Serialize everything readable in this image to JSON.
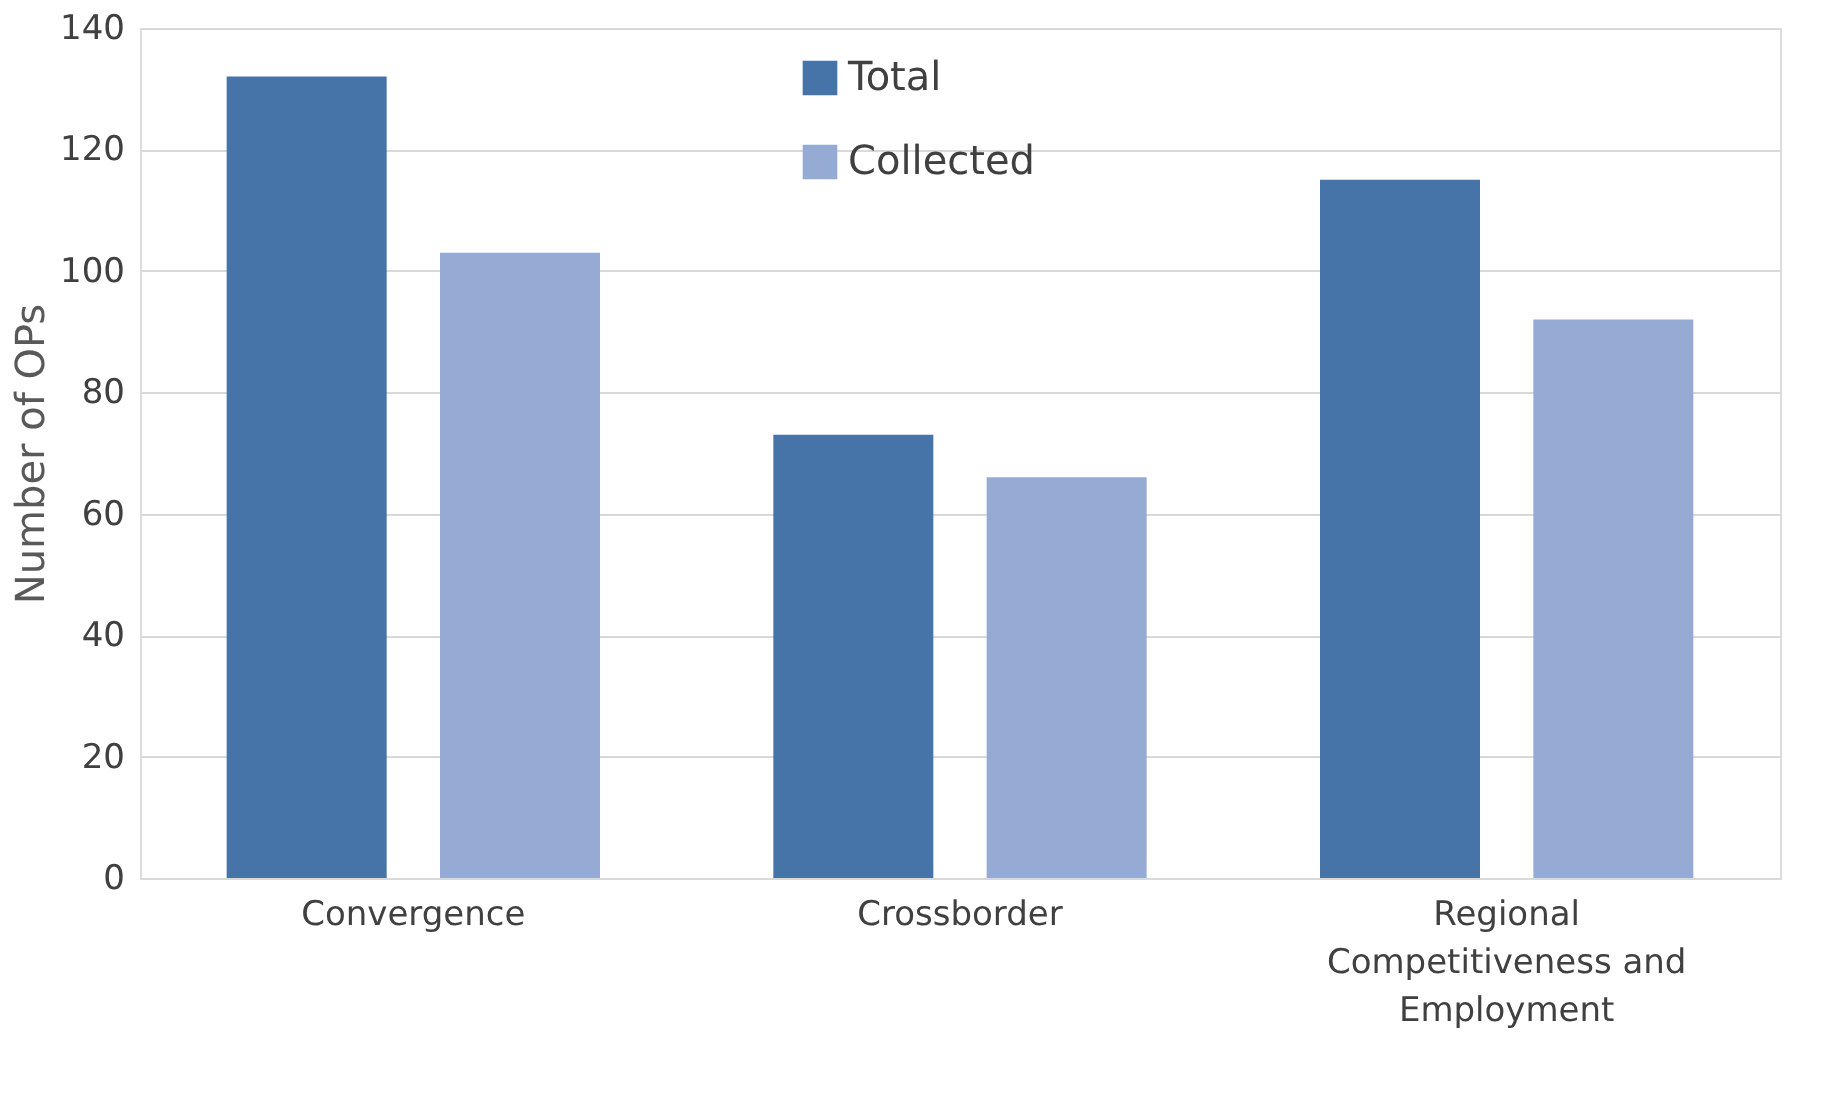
{
  "chart_data": {
    "type": "bar",
    "ylabel": "Number of OPs",
    "categories": [
      "Convergence",
      "Crossborder",
      "Regional Competitiveness and Employment"
    ],
    "series": [
      {
        "name": "Total",
        "color": "#4673a8",
        "values": [
          132,
          73,
          115
        ]
      },
      {
        "name": "Collected",
        "color": "#95abd4",
        "values": [
          103,
          66,
          92
        ]
      }
    ],
    "ylim": [
      0,
      140
    ],
    "yticks": [
      0,
      20,
      40,
      60,
      80,
      100,
      120,
      140
    ],
    "grid": "y",
    "legend": "top"
  }
}
